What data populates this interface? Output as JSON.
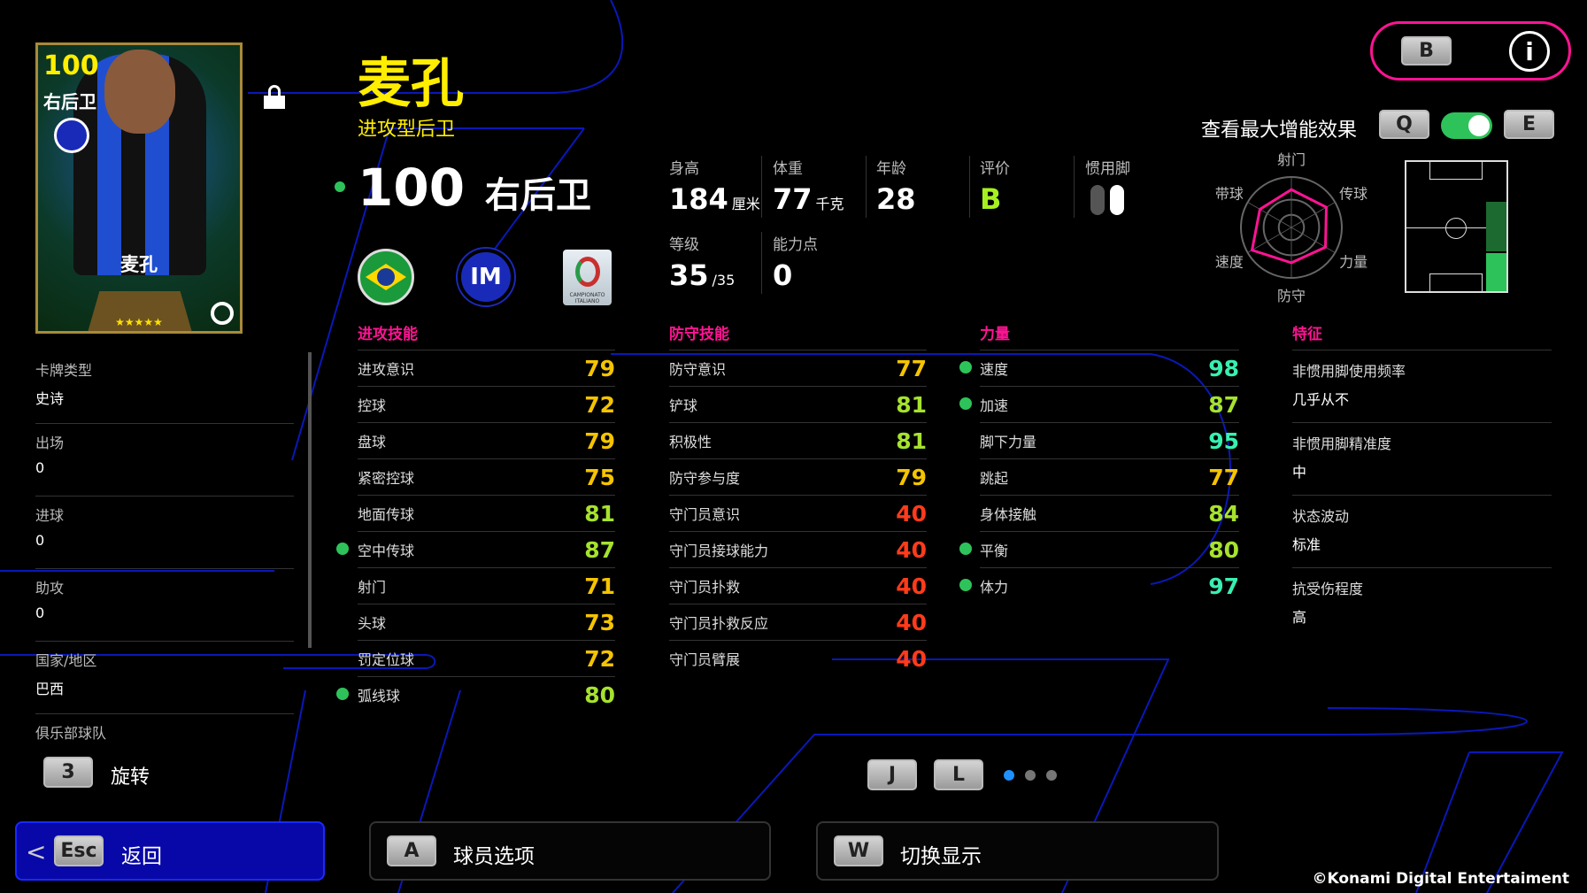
{
  "player": {
    "name": "麦孔",
    "style": "进攻型后卫",
    "rating": "100",
    "position": "右后卫",
    "card_rating": "100",
    "card_position": "右后卫",
    "card_name": "麦孔",
    "stars": "★★★★★"
  },
  "badges": {
    "nation": "brazil-flag",
    "club": "inter-logo",
    "league": "CAMPIONATO ITALIANO"
  },
  "top": {
    "b_key": "B",
    "info_icon": "info-icon",
    "boost_label": "查看最大增能效果",
    "q_key": "Q",
    "e_key": "E",
    "boost_on": true
  },
  "stats": {
    "height": {
      "label": "身高",
      "value": "184",
      "unit": "厘米"
    },
    "weight": {
      "label": "体重",
      "value": "77",
      "unit": "千克"
    },
    "age": {
      "label": "年龄",
      "value": "28"
    },
    "grade": {
      "label": "评价",
      "value": "B"
    },
    "foot": {
      "label": "惯用脚"
    },
    "level": {
      "label": "等级",
      "value": "35",
      "max": "/35"
    },
    "points": {
      "label": "能力点",
      "value": "0"
    }
  },
  "radar": {
    "labels": [
      "射门",
      "传球",
      "力量",
      "防守",
      "速度",
      "带球"
    ],
    "values": [
      0.75,
      0.8,
      0.78,
      0.7,
      0.9,
      0.72
    ]
  },
  "info": [
    {
      "label": "卡牌类型",
      "value": "史诗"
    },
    {
      "label": "出场",
      "value": "0"
    },
    {
      "label": "进球",
      "value": "0"
    },
    {
      "label": "助攻",
      "value": "0"
    },
    {
      "label": "国家/地区",
      "value": "巴西"
    },
    {
      "label": "俱乐部球队",
      "value": ""
    }
  ],
  "sections": {
    "attack": "进攻技能",
    "defense": "防守技能",
    "power": "力量",
    "traits": "特征"
  },
  "attack": [
    {
      "n": "进攻意识",
      "v": "79"
    },
    {
      "n": "控球",
      "v": "72"
    },
    {
      "n": "盘球",
      "v": "79"
    },
    {
      "n": "紧密控球",
      "v": "75"
    },
    {
      "n": "地面传球",
      "v": "81"
    },
    {
      "n": "空中传球",
      "v": "87",
      "dot": true
    },
    {
      "n": "射门",
      "v": "71"
    },
    {
      "n": "头球",
      "v": "73"
    },
    {
      "n": "罚定位球",
      "v": "72"
    },
    {
      "n": "弧线球",
      "v": "80",
      "dot": true
    }
  ],
  "defense": [
    {
      "n": "防守意识",
      "v": "77"
    },
    {
      "n": "铲球",
      "v": "81"
    },
    {
      "n": "积极性",
      "v": "81"
    },
    {
      "n": "防守参与度",
      "v": "79"
    },
    {
      "n": "守门员意识",
      "v": "40"
    },
    {
      "n": "守门员接球能力",
      "v": "40"
    },
    {
      "n": "守门员扑救",
      "v": "40"
    },
    {
      "n": "守门员扑救反应",
      "v": "40"
    },
    {
      "n": "守门员臂展",
      "v": "40"
    }
  ],
  "power": [
    {
      "n": "速度",
      "v": "98",
      "dot": true
    },
    {
      "n": "加速",
      "v": "87",
      "dot": true
    },
    {
      "n": "脚下力量",
      "v": "95"
    },
    {
      "n": "跳起",
      "v": "77"
    },
    {
      "n": "身体接触",
      "v": "84"
    },
    {
      "n": "平衡",
      "v": "80",
      "dot": true
    },
    {
      "n": "体力",
      "v": "97",
      "dot": true
    }
  ],
  "traits": [
    {
      "label": "非惯用脚使用频率",
      "value": "几乎从不"
    },
    {
      "label": "非惯用脚精准度",
      "value": "中"
    },
    {
      "label": "状态波动",
      "value": "标准"
    },
    {
      "label": "抗受伤程度",
      "value": "高"
    }
  ],
  "controls": {
    "rotate_key": "3",
    "rotate_label": "旋转",
    "j_key": "J",
    "l_key": "L",
    "page": 1,
    "pages": 3
  },
  "bottom": {
    "back_key": "Esc",
    "back_label": "返回",
    "options_key": "A",
    "options_label": "球员选项",
    "switch_key": "W",
    "switch_label": "切换显示"
  },
  "copyright": "©Konami Digital Entertaiment",
  "colors": {
    "accent": "#ff1493",
    "yellow": "#ffee00",
    "val70": "#f5c400",
    "val80": "#a6e22e",
    "val90": "#38f0b0",
    "val40": "#ff3b1a",
    "green": "#2ec35a",
    "blue": "#0a0ab0"
  }
}
